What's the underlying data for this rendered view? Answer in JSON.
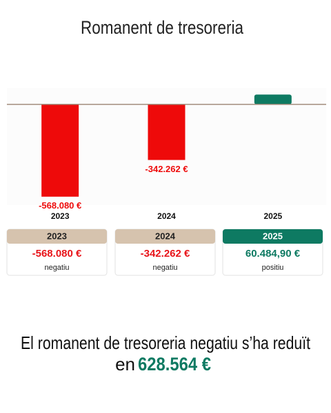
{
  "chart_data": {
    "type": "bar",
    "title": "Romanent de tresoreria",
    "categories": [
      "2023",
      "2024",
      "2025"
    ],
    "values": [
      -568080,
      -342262,
      60484.9
    ],
    "value_labels": [
      "-568.080 €",
      "-342.262 €",
      null
    ],
    "colors": [
      "#ee0a0a",
      "#ee0a0a",
      "#0e7a62"
    ],
    "ylim": [
      -620000,
      100000
    ]
  },
  "cards": [
    {
      "amount": "-568.080 €",
      "status": "negatiu"
    },
    {
      "amount": "-342.262 €",
      "status": "negatiu"
    },
    {
      "amount": "60.484,90 €",
      "status": "positiu"
    }
  ],
  "footer": {
    "line1": "El romanent de tresoreria negatiu s’ha reduït",
    "line2": "en",
    "amount": "628.564 €"
  }
}
